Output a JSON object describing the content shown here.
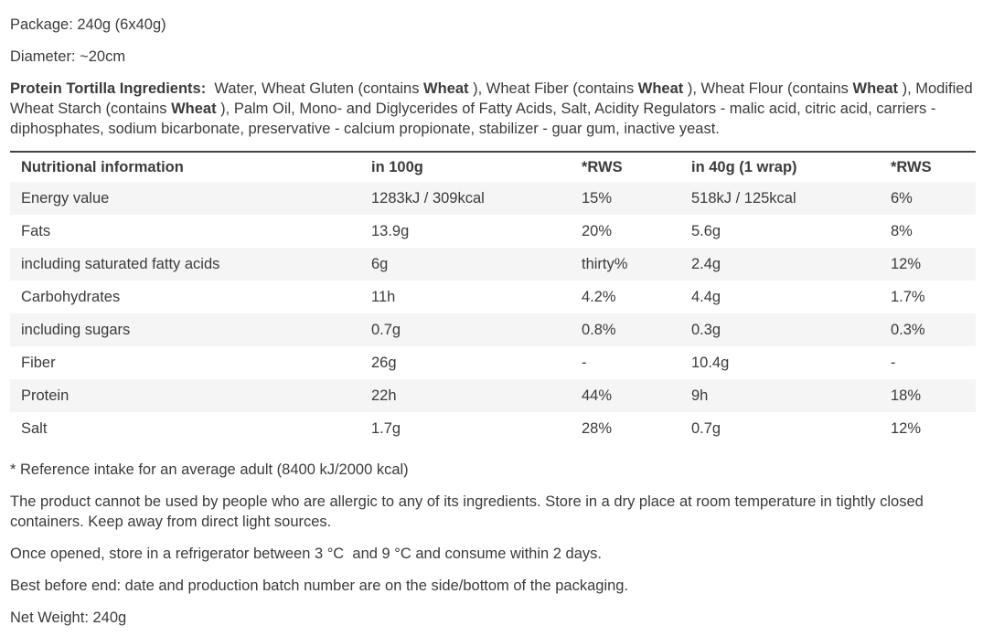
{
  "product": {
    "package_text": "Package: 240g (6x40g)",
    "diameter_text": "Diameter: ~20cm",
    "ingredients": {
      "segments": [
        {
          "text": "Protein Tortilla Ingredients:",
          "bold": true
        },
        {
          "text": "  Water, Wheat Gluten (contains ",
          "bold": false
        },
        {
          "text": "Wheat",
          "bold": true
        },
        {
          "text": " ), Wheat Fiber (contains ",
          "bold": false
        },
        {
          "text": "Wheat",
          "bold": true
        },
        {
          "text": " ), Wheat Flour (contains ",
          "bold": false
        },
        {
          "text": "Wheat",
          "bold": true
        },
        {
          "text": " ), Modified Wheat Starch (contains ",
          "bold": false
        },
        {
          "text": "Wheat",
          "bold": true
        },
        {
          "text": " ), Palm Oil, Mono- and Diglycerides of Fatty Acids, Salt, Acidity Regulators - malic acid, citric acid, carriers - diphosphates, sodium bicarbonate, preservative - calcium propionate, stabilizer - guar gum, inactive yeast.",
          "bold": false
        }
      ]
    }
  },
  "table": {
    "headers": [
      "Nutritional information",
      "in 100g",
      "*RWS",
      "in 40g (1 wrap)",
      "*RWS"
    ],
    "rows": [
      [
        "Energy value",
        "1283kJ / 309kcal",
        "15%",
        "518kJ / 125kcal",
        "6%"
      ],
      [
        "Fats",
        "13.9g",
        "20%",
        "5.6g",
        "8%"
      ],
      [
        "including saturated fatty acids",
        "6g",
        "thirty%",
        "2.4g",
        "12%"
      ],
      [
        "Carbohydrates",
        "11h",
        "4.2%",
        "4.4g",
        "1.7%"
      ],
      [
        "including sugars",
        "0.7g",
        "0.8%",
        "0.3g",
        "0.3%"
      ],
      [
        "Fiber",
        "26g",
        "-",
        "10.4g",
        "-"
      ],
      [
        "Protein",
        "22h",
        "44%",
        "9h",
        "18%"
      ],
      [
        "Salt",
        "1.7g",
        "28%",
        "0.7g",
        "12%"
      ]
    ]
  },
  "footer": {
    "reference_text": "* Reference intake for an average adult (8400 kJ/2000 kcal)",
    "allergy_text": "The product cannot be used by people who are allergic to any of its ingredients. Store in a dry place at room temperature in tightly closed containers. Keep away from direct light sources.",
    "storage_text": "Once opened, store in a refrigerator between 3 °C  and 9 °C and consume within 2 days.",
    "best_before_text": "Best before end: date and production batch number are on the side/bottom of the packaging.",
    "net_weight_text": "Net Weight: 240g"
  },
  "colors": {
    "text": "#3b3b3b",
    "table_top_border": "#424242",
    "row_alt_background": "#f5f5f5",
    "page_background": "#ffffff"
  }
}
